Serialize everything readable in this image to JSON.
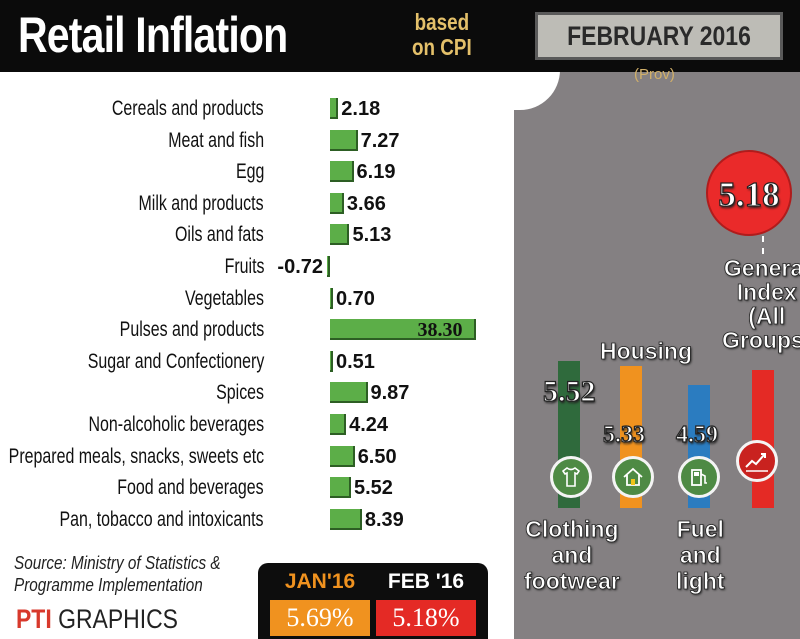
{
  "header": {
    "title": "Retail Inflation",
    "subtitle_line1": "based",
    "subtitle_line2": "on CPI",
    "month": "FEBRUARY 2016",
    "note": "(Prov)"
  },
  "colors": {
    "bar_green": "#5cae48",
    "clothing": "#2f6a3c",
    "housing": "#f0921f",
    "fuel": "#2b7cc0",
    "general": "#e42a25",
    "jan_box": "#f0921f",
    "feb_box": "#e42a25",
    "header_bg": "#0b0b0b",
    "panel_gray": "#848082"
  },
  "chart_data": [
    {
      "type": "bar",
      "orientation": "horizontal",
      "categories": [
        "Cereals and products",
        "Meat and fish",
        "Egg",
        "Milk and products",
        "Oils and fats",
        "Fruits",
        "Vegetables",
        "Pulses and products",
        "Sugar and Confectionery",
        "Spices",
        "Non-alcoholic beverages",
        "Prepared meals, snacks, sweets etc",
        "Food and beverages",
        "Pan, tobacco and intoxicants"
      ],
      "values": [
        2.18,
        7.27,
        6.19,
        3.66,
        5.13,
        -0.72,
        0.7,
        38.3,
        0.51,
        9.87,
        4.24,
        6.5,
        5.52,
        8.39
      ],
      "value_labels": [
        "2.18",
        "7.27",
        "6.19",
        "3.66",
        "5.13",
        "-0.72",
        "0.70",
        "38.30",
        "0.51",
        "9.87",
        "4.24",
        "6.50",
        "5.52",
        "8.39"
      ]
    },
    {
      "type": "bar",
      "orientation": "vertical",
      "categories": [
        "Clothing and footwear",
        "Housing",
        "Fuel and light",
        "General Index (All Groups)"
      ],
      "values": [
        5.52,
        5.33,
        4.59,
        5.18
      ],
      "value_labels": [
        "5.52",
        "5.33",
        "4.59",
        "5.18"
      ]
    }
  ],
  "right": {
    "clothing_label": [
      "Clothing",
      "and",
      "footwear"
    ],
    "housing_label": "Housing",
    "fuel_label": [
      "Fuel",
      "and",
      "light"
    ],
    "general_label": [
      "General",
      "Index",
      "(All",
      "Groups)"
    ],
    "general_bubble": "5.18",
    "icons": [
      "shirt-icon",
      "house-icon",
      "fuel-pump-icon",
      "trend-chart-icon"
    ]
  },
  "source": {
    "line1": "Source: Ministry of Statistics &",
    "line2": "Programme Implementation"
  },
  "credit": {
    "brand": "PTI",
    "text": "GRAPHICS"
  },
  "compare": {
    "jan_label": "JAN'16",
    "feb_label": "FEB '16",
    "jan_value": "5.69%",
    "feb_value": "5.18%"
  }
}
